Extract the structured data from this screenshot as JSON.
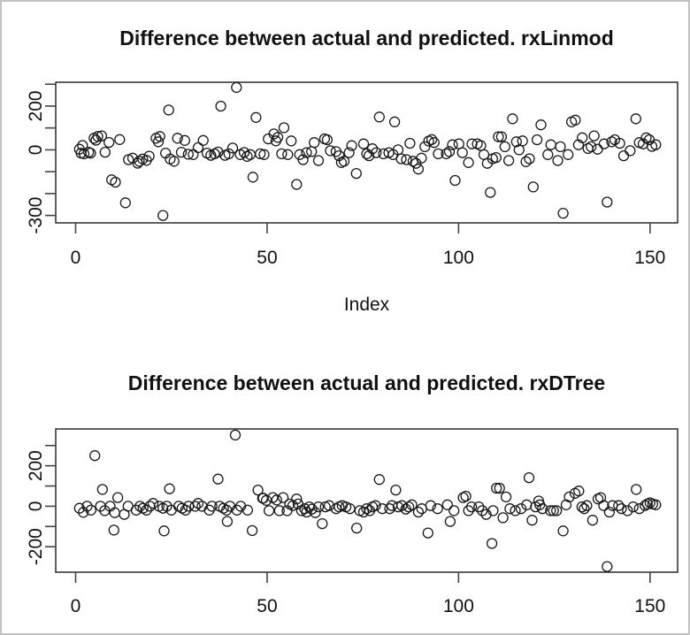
{
  "frame": {
    "background": "#ffffff",
    "border_color": "#c2c2c2"
  },
  "styles": {
    "point_color": "#1a1a1a",
    "axis_color": "#2b2b2b",
    "tick_color": "#444444",
    "text_color": "#111111"
  },
  "chart_data": [
    {
      "type": "scatter",
      "title": "Difference between actual and predicted. rxLinmod",
      "xlabel": "Index",
      "ylabel": "",
      "marker": "open-circle",
      "grid": false,
      "legend": null,
      "xlim": [
        -5.2,
        157.2
      ],
      "ylim": [
        -334,
        309
      ],
      "x_ticks": [
        0,
        50,
        100,
        150
      ],
      "y_ticks": [
        300,
        200,
        100,
        0,
        -100,
        -200,
        -300
      ],
      "y_tick_labels_shown": [
        200,
        0,
        -300
      ],
      "points": [
        [
          1,
          3
        ],
        [
          1.4,
          -15
        ],
        [
          1.8,
          20
        ],
        [
          2.2,
          -18
        ],
        [
          3.4,
          -11
        ],
        [
          3.9,
          -15
        ],
        [
          4.8,
          53
        ],
        [
          5.3,
          44
        ],
        [
          5.8,
          61
        ],
        [
          6.8,
          64
        ],
        [
          7.7,
          -11
        ],
        [
          8.7,
          34
        ],
        [
          9.4,
          -137
        ],
        [
          10.4,
          -148
        ],
        [
          11.5,
          47
        ],
        [
          13,
          -242
        ],
        [
          13.8,
          -45
        ],
        [
          14.9,
          -38
        ],
        [
          16.2,
          -61
        ],
        [
          16.6,
          -52
        ],
        [
          17.5,
          -42
        ],
        [
          18.5,
          -48
        ],
        [
          19.2,
          -29
        ],
        [
          21,
          53
        ],
        [
          21.6,
          37
        ],
        [
          22,
          61
        ],
        [
          22.8,
          -300
        ],
        [
          23.5,
          -15
        ],
        [
          24.3,
          182
        ],
        [
          24.7,
          -42
        ],
        [
          25.7,
          -52
        ],
        [
          26.6,
          53
        ],
        [
          27.6,
          -11
        ],
        [
          28.5,
          43
        ],
        [
          29.4,
          -20
        ],
        [
          30.7,
          -22
        ],
        [
          32,
          10
        ],
        [
          33.3,
          43
        ],
        [
          34.3,
          -15
        ],
        [
          35.3,
          -25
        ],
        [
          36.3,
          -18
        ],
        [
          37.2,
          -10
        ],
        [
          37.9,
          200
        ],
        [
          39,
          -25
        ],
        [
          40,
          -18
        ],
        [
          41,
          8
        ],
        [
          42,
          285
        ],
        [
          43,
          -22
        ],
        [
          44,
          -12
        ],
        [
          44.8,
          -30
        ],
        [
          45.6,
          -22
        ],
        [
          46.3,
          -125
        ],
        [
          47.1,
          148
        ],
        [
          48.2,
          -18
        ],
        [
          49.2,
          -22
        ],
        [
          50.3,
          50
        ],
        [
          51.8,
          73
        ],
        [
          52.3,
          41
        ],
        [
          52.8,
          57
        ],
        [
          53.8,
          -18
        ],
        [
          54.4,
          101
        ],
        [
          55.4,
          -22
        ],
        [
          56.3,
          41
        ],
        [
          57.7,
          -158
        ],
        [
          58.5,
          -22
        ],
        [
          59.4,
          -45
        ],
        [
          60.3,
          -13
        ],
        [
          61.6,
          -8
        ],
        [
          62.3,
          33
        ],
        [
          63.4,
          -49
        ],
        [
          65,
          50
        ],
        [
          65.7,
          46
        ],
        [
          66.5,
          -4
        ],
        [
          68,
          -8
        ],
        [
          68.8,
          -27
        ],
        [
          69.4,
          -58
        ],
        [
          70.1,
          -52
        ],
        [
          71.4,
          -13
        ],
        [
          72.1,
          19
        ],
        [
          73.3,
          -108
        ],
        [
          75.2,
          27
        ],
        [
          76,
          -18
        ],
        [
          76.6,
          -27
        ],
        [
          77.5,
          5
        ],
        [
          78.5,
          -13
        ],
        [
          79.3,
          150
        ],
        [
          80.4,
          -18
        ],
        [
          81.8,
          -13
        ],
        [
          82.9,
          -22
        ],
        [
          83.3,
          128
        ],
        [
          84.2,
          0
        ],
        [
          85,
          -41
        ],
        [
          86.4,
          -45
        ],
        [
          87.3,
          30
        ],
        [
          88.1,
          -52
        ],
        [
          88.9,
          -62
        ],
        [
          89.5,
          -88
        ],
        [
          90.3,
          -38
        ],
        [
          91.2,
          14
        ],
        [
          92.2,
          40
        ],
        [
          93,
          47
        ],
        [
          93.6,
          33
        ],
        [
          94.7,
          -18
        ],
        [
          96.8,
          -18
        ],
        [
          97.6,
          -8
        ],
        [
          98.4,
          23
        ],
        [
          99.1,
          -140
        ],
        [
          100.1,
          27
        ],
        [
          101,
          -13
        ],
        [
          102.6,
          -58
        ],
        [
          103.5,
          27
        ],
        [
          104.9,
          27
        ],
        [
          105.8,
          19
        ],
        [
          106.6,
          -22
        ],
        [
          107.5,
          -62
        ],
        [
          108.3,
          -195
        ],
        [
          108.9,
          -41
        ],
        [
          109.8,
          -35
        ],
        [
          110.4,
          60
        ],
        [
          111.2,
          60
        ],
        [
          112.1,
          14
        ],
        [
          113.1,
          -49
        ],
        [
          114.1,
          142
        ],
        [
          115.1,
          37
        ],
        [
          115.8,
          0
        ],
        [
          116.7,
          41
        ],
        [
          117.6,
          -54
        ],
        [
          118.5,
          -41
        ],
        [
          119.5,
          -170
        ],
        [
          120.5,
          46
        ],
        [
          121.5,
          114
        ],
        [
          123.3,
          -22
        ],
        [
          124.1,
          23
        ],
        [
          125.9,
          -49
        ],
        [
          126.6,
          14
        ],
        [
          127.3,
          -290
        ],
        [
          128.6,
          -22
        ],
        [
          129.5,
          128
        ],
        [
          130.5,
          136
        ],
        [
          131.3,
          23
        ],
        [
          132.3,
          55
        ],
        [
          133.8,
          6
        ],
        [
          134.6,
          14
        ],
        [
          135.4,
          64
        ],
        [
          136.3,
          3
        ],
        [
          138,
          27
        ],
        [
          138.8,
          -239
        ],
        [
          140,
          37
        ],
        [
          140.8,
          46
        ],
        [
          142.1,
          30
        ],
        [
          143.1,
          -27
        ],
        [
          144.8,
          -4
        ],
        [
          146.3,
          142
        ],
        [
          147.2,
          33
        ],
        [
          148.2,
          27
        ],
        [
          149,
          55
        ],
        [
          149.8,
          46
        ],
        [
          150.5,
          16
        ],
        [
          151.5,
          23
        ]
      ]
    },
    {
      "type": "scatter",
      "title": "Difference between actual and predicted. rxDTree",
      "xlabel": "",
      "ylabel": "",
      "marker": "open-circle",
      "grid": false,
      "legend": null,
      "xlim": [
        -5.2,
        157.2
      ],
      "ylim": [
        -326,
        382
      ],
      "x_ticks": [
        0,
        50,
        100,
        150
      ],
      "y_ticks": [
        300,
        200,
        100,
        0,
        -100,
        -200
      ],
      "y_tick_labels_shown": [
        200,
        0,
        -200
      ],
      "points": [
        [
          1,
          -10
        ],
        [
          2,
          -30
        ],
        [
          3,
          0
        ],
        [
          4,
          -19
        ],
        [
          5,
          250
        ],
        [
          6.5,
          0
        ],
        [
          7,
          83
        ],
        [
          7.6,
          -22
        ],
        [
          9,
          0
        ],
        [
          10,
          -118
        ],
        [
          10.2,
          -32
        ],
        [
          11,
          43
        ],
        [
          12.7,
          -40
        ],
        [
          13.7,
          0
        ],
        [
          15.8,
          -19
        ],
        [
          16.8,
          0
        ],
        [
          17.6,
          -10
        ],
        [
          18.5,
          -19
        ],
        [
          19.4,
          0
        ],
        [
          20.2,
          14
        ],
        [
          21.8,
          0
        ],
        [
          22.8,
          -10
        ],
        [
          23.1,
          -122
        ],
        [
          23.8,
          0
        ],
        [
          24.5,
          86
        ],
        [
          25,
          -19
        ],
        [
          26.9,
          0
        ],
        [
          27.8,
          -10
        ],
        [
          28.7,
          -19
        ],
        [
          29.5,
          0
        ],
        [
          31.2,
          0
        ],
        [
          32,
          14
        ],
        [
          33,
          0
        ],
        [
          34.9,
          -19
        ],
        [
          35.6,
          0
        ],
        [
          37.2,
          134
        ],
        [
          37.6,
          0
        ],
        [
          38.6,
          -10
        ],
        [
          39.4,
          -19
        ],
        [
          39.6,
          -75
        ],
        [
          40.3,
          0
        ],
        [
          41.7,
          352
        ],
        [
          42.1,
          -19
        ],
        [
          43.1,
          0
        ],
        [
          44.9,
          -19
        ],
        [
          46.1,
          -120
        ],
        [
          47.6,
          80
        ],
        [
          48.8,
          40
        ],
        [
          49,
          40
        ],
        [
          49.8,
          29
        ],
        [
          50.5,
          -22
        ],
        [
          51.5,
          43
        ],
        [
          52.5,
          31
        ],
        [
          53.2,
          -22
        ],
        [
          54.2,
          43
        ],
        [
          55.2,
          -22
        ],
        [
          55.9,
          11
        ],
        [
          56.7,
          3
        ],
        [
          57.7,
          36
        ],
        [
          58.1,
          11
        ],
        [
          59,
          -22
        ],
        [
          59.8,
          -12
        ],
        [
          60.3,
          -29
        ],
        [
          61,
          -3
        ],
        [
          61.7,
          -14
        ],
        [
          62.6,
          -32
        ],
        [
          63.4,
          -3
        ],
        [
          64.4,
          -86
        ],
        [
          65.2,
          -3
        ],
        [
          66.2,
          3
        ],
        [
          68,
          -12
        ],
        [
          68.8,
          -3
        ],
        [
          69.6,
          3
        ],
        [
          70.6,
          -3
        ],
        [
          71.6,
          -12
        ],
        [
          73.4,
          -108
        ],
        [
          74.2,
          -22
        ],
        [
          75.2,
          -29
        ],
        [
          76,
          -12
        ],
        [
          76.8,
          -22
        ],
        [
          77.5,
          -3
        ],
        [
          78.3,
          3
        ],
        [
          79.3,
          132
        ],
        [
          80.1,
          -12
        ],
        [
          82,
          -12
        ],
        [
          82.6,
          3
        ],
        [
          83.6,
          80
        ],
        [
          84.2,
          -3
        ],
        [
          85.2,
          3
        ],
        [
          86.2,
          -14
        ],
        [
          87,
          -3
        ],
        [
          87.8,
          7
        ],
        [
          89.5,
          -29
        ],
        [
          90.4,
          -12
        ],
        [
          92,
          -132
        ],
        [
          92.7,
          3
        ],
        [
          94.5,
          -12
        ],
        [
          97.1,
          7
        ],
        [
          97.8,
          -75
        ],
        [
          98.8,
          -22
        ],
        [
          101.2,
          43
        ],
        [
          101.9,
          50
        ],
        [
          102.6,
          -22
        ],
        [
          103.4,
          -3
        ],
        [
          105.3,
          -3
        ],
        [
          106.2,
          -22
        ],
        [
          107.2,
          -40
        ],
        [
          108.7,
          -184
        ],
        [
          109,
          -22
        ],
        [
          109.9,
          89
        ],
        [
          110.7,
          89
        ],
        [
          111.6,
          -57
        ],
        [
          112.4,
          46
        ],
        [
          113.4,
          -12
        ],
        [
          114.8,
          -22
        ],
        [
          116.3,
          -12
        ],
        [
          117.8,
          7
        ],
        [
          118.4,
          141
        ],
        [
          119.2,
          -69
        ],
        [
          120.1,
          -3
        ],
        [
          120.9,
          26
        ],
        [
          121.2,
          7
        ],
        [
          121.9,
          -12
        ],
        [
          124,
          -22
        ],
        [
          124.8,
          -22
        ],
        [
          125.6,
          -22
        ],
        [
          127.3,
          -122
        ],
        [
          128.1,
          7
        ],
        [
          128.9,
          46
        ],
        [
          130.4,
          64
        ],
        [
          131.4,
          75
        ],
        [
          132.2,
          -3
        ],
        [
          132.8,
          -12
        ],
        [
          133.5,
          3
        ],
        [
          135,
          -69
        ],
        [
          136.4,
          36
        ],
        [
          137.1,
          43
        ],
        [
          137.9,
          3
        ],
        [
          138.8,
          -298
        ],
        [
          139.4,
          -29
        ],
        [
          140.2,
          3
        ],
        [
          141.8,
          3
        ],
        [
          142.5,
          -12
        ],
        [
          144.1,
          -22
        ],
        [
          145.6,
          -3
        ],
        [
          146.4,
          83
        ],
        [
          147.2,
          -12
        ],
        [
          148.7,
          3
        ],
        [
          149.3,
          11
        ],
        [
          150,
          17
        ],
        [
          150.7,
          11
        ],
        [
          151.5,
          7
        ]
      ]
    }
  ]
}
